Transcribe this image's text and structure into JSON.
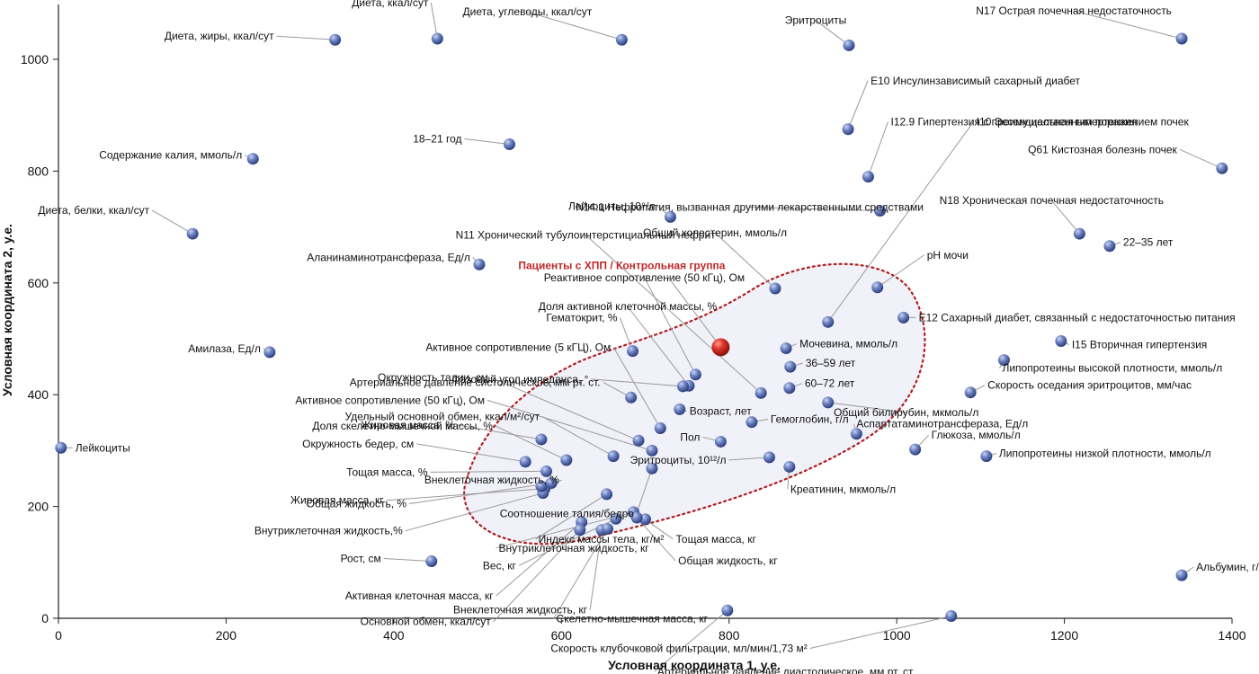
{
  "chart_data": {
    "type": "scatter",
    "xlabel": "Условная координата 1, у.е.",
    "ylabel": "Условная координата 2, у.е.",
    "xlim": [
      0,
      1400
    ],
    "ylim": [
      0,
      1000
    ],
    "x_ticks": [
      "0",
      "200",
      "400",
      "600",
      "800",
      "1000",
      "1200",
      "1400"
    ],
    "y_ticks": [
      "0",
      "200",
      "400",
      "600",
      "800",
      "1000"
    ],
    "grid": false,
    "highlight": {
      "label": "Пациенты с ХПП / Контрольная группа",
      "x": 790,
      "y": 485,
      "color": "#c0282a"
    },
    "points": [
      {
        "label": "Диета, ккал/сут",
        "x": 452,
        "y": 1037
      },
      {
        "label": "Диета, жиры, ккал/сут",
        "x": 330,
        "y": 1035
      },
      {
        "label": "Диета, углеводы, ккал/сут",
        "x": 672,
        "y": 1035
      },
      {
        "label": "Эритроциты",
        "x": 943,
        "y": 1025
      },
      {
        "label": "N17 Острая почечная недостаточность",
        "x": 1340,
        "y": 1037
      },
      {
        "label": "E10 Инсулинзависимый сахарный диабет",
        "x": 942,
        "y": 875
      },
      {
        "label": "I12.9 Гипертензия с преимущественным поражением почек",
        "x": 966,
        "y": 790
      },
      {
        "label": "18–21 год",
        "x": 538,
        "y": 848
      },
      {
        "label": "Содержание калия, ммоль/л",
        "x": 232,
        "y": 822
      },
      {
        "label": "N14.1 Нефропатия, вызванная другими лекарственными средствами",
        "x": 980,
        "y": 729
      },
      {
        "label": "Q61 Кистозная болезнь почек",
        "x": 1388,
        "y": 805
      },
      {
        "label": "Диета, белки, ккал/сут",
        "x": 160,
        "y": 688
      },
      {
        "label": "Лейкоциты, 10⁹/л",
        "x": 730,
        "y": 718
      },
      {
        "label": "N18 Хроническая почечная недостаточность",
        "x": 1218,
        "y": 688
      },
      {
        "label": "22–35 лет",
        "x": 1254,
        "y": 666
      },
      {
        "label": "Общий холестерин, ммоль/л",
        "x": 855,
        "y": 590
      },
      {
        "label": "N11 Хронический тубулоинтерстициальный нефрит",
        "x": 838,
        "y": 403
      },
      {
        "label": "Аланинаминотрансфераза, Ед/л",
        "x": 502,
        "y": 633
      },
      {
        "label": "pH мочи",
        "x": 977,
        "y": 592
      },
      {
        "label": "I10 Эссенциальная гипертензия",
        "x": 918,
        "y": 530
      },
      {
        "label": "E12 Сахарный диабет, связанный с недостаточностью питания",
        "x": 1008,
        "y": 538
      },
      {
        "label": "Реактивное сопротивление (50 кГц), Ом",
        "x": 760,
        "y": 436
      },
      {
        "label": "Доля активной клеточной массы, %",
        "x": 752,
        "y": 416
      },
      {
        "label": "Гематокрит, %",
        "x": 685,
        "y": 478
      },
      {
        "label": "Активное сопротивление (5 кГЦ), Ом",
        "x": 718,
        "y": 340
      },
      {
        "label": "Артериальное давление систолическое, мм рт. ст.",
        "x": 683,
        "y": 395
      },
      {
        "label": "Амилаза, Ед/л",
        "x": 252,
        "y": 476
      },
      {
        "label": "Мочевина, ммоль/л",
        "x": 868,
        "y": 483
      },
      {
        "label": "I15 Вторичная гипертензия",
        "x": 1196,
        "y": 496
      },
      {
        "label": "36–59 лет",
        "x": 873,
        "y": 450
      },
      {
        "label": "Липопротеины высокой плотности, ммоль/л",
        "x": 1128,
        "y": 462
      },
      {
        "label": "Окружность талии, см",
        "x": 692,
        "y": 318
      },
      {
        "label": "Активное сопротивление (50 кГц), Ом",
        "x": 708,
        "y": 300
      },
      {
        "label": "Фазовый угол импеданса, °",
        "x": 745,
        "y": 415
      },
      {
        "label": "60–72 лет",
        "x": 872,
        "y": 412
      },
      {
        "label": "Скорость оседания эритроцитов, мм/час",
        "x": 1088,
        "y": 404
      },
      {
        "label": "Удельный основной обмен, ккал/м²/сут",
        "x": 662,
        "y": 290
      },
      {
        "label": "Возраст, лет",
        "x": 741,
        "y": 374
      },
      {
        "label": "Общий билирубин, мкмоль/л",
        "x": 918,
        "y": 386
      },
      {
        "label": "Доля скелетно-мышечной массы, %",
        "x": 606,
        "y": 283
      },
      {
        "label": "Гемоглобин, г/л",
        "x": 827,
        "y": 351
      },
      {
        "label": "Жировая масса, %",
        "x": 576,
        "y": 320
      },
      {
        "label": "Пол",
        "x": 790,
        "y": 316
      },
      {
        "label": "Аспартатаминотрансфераза, Ед/л",
        "x": 952,
        "y": 330
      },
      {
        "label": "Глюкоза, ммоль/л",
        "x": 1022,
        "y": 302
      },
      {
        "label": "Окружность бедер, см",
        "x": 557,
        "y": 280
      },
      {
        "label": "Эритроциты, 10¹²/л",
        "x": 848,
        "y": 288
      },
      {
        "label": "Липопротеины низкой плотности, ммоль/л",
        "x": 1107,
        "y": 290
      },
      {
        "label": "Тощая масса, %",
        "x": 582,
        "y": 263
      },
      {
        "label": "Креатинин, мкмоль/л",
        "x": 872,
        "y": 271
      },
      {
        "label": "Соотношение талия/бедро",
        "x": 708,
        "y": 268
      },
      {
        "label": "Жировая масса, кг",
        "x": 580,
        "y": 232
      },
      {
        "label": "Общая жидкость, %",
        "x": 588,
        "y": 242
      },
      {
        "label": "Индекс массы тела, кг/м²",
        "x": 654,
        "y": 222
      },
      {
        "label": "Внутриклеточная жидкость,%",
        "x": 578,
        "y": 224
      },
      {
        "label": "Внутриклеточная жидкость, кг",
        "x": 686,
        "y": 190
      },
      {
        "label": "Внеклеточная жидкость, %",
        "x": 576,
        "y": 236
      },
      {
        "label": "Тощая масса, кг",
        "x": 700,
        "y": 177
      },
      {
        "label": "Рост, см",
        "x": 445,
        "y": 102
      },
      {
        "label": "Вес, кг",
        "x": 665,
        "y": 178
      },
      {
        "label": "Общая жидкость, кг",
        "x": 690,
        "y": 180
      },
      {
        "label": "Активная клеточная масса, кг",
        "x": 624,
        "y": 172
      },
      {
        "label": "Внеклеточная жидкость, кг",
        "x": 648,
        "y": 158
      },
      {
        "label": "Основной обмен, ккал/сут",
        "x": 622,
        "y": 158
      },
      {
        "label": "Скелетно-мышечная масса, кг",
        "x": 655,
        "y": 160
      },
      {
        "label": "Лейкоциты",
        "x": 3,
        "y": 305
      },
      {
        "label": "Артериальное давление диастолическое, мм рт. ст.",
        "x": 798,
        "y": 14
      },
      {
        "label": "Скорость клубочковой фильтрации, мл/мин/1,73 м²",
        "x": 1065,
        "y": 4
      },
      {
        "label": "Альбумин, г/л",
        "x": 1340,
        "y": 77
      }
    ]
  }
}
